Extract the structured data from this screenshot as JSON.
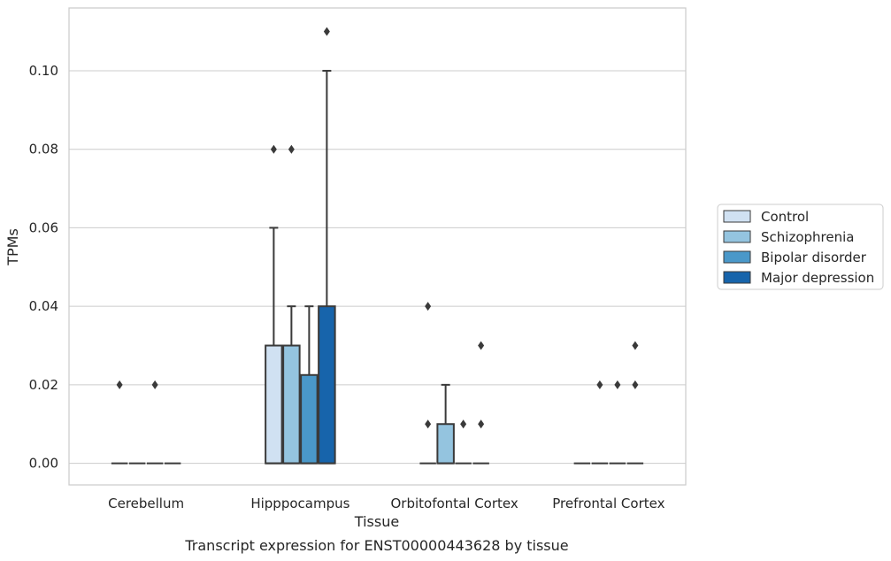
{
  "chart_data": {
    "type": "box",
    "title": "Transcript expression for ENST00000443628 by tissue",
    "xlabel": "Tissue",
    "ylabel": "TPMs",
    "categories": [
      "Cerebellum",
      "Hipppocampus",
      "Orbitofontal Cortex",
      "Prefrontal Cortex"
    ],
    "ylim": [
      -0.0055,
      0.116
    ],
    "yticks": [
      {
        "v": 0.0,
        "label": "0.00"
      },
      {
        "v": 0.02,
        "label": "0.02"
      },
      {
        "v": 0.04,
        "label": "0.04"
      },
      {
        "v": 0.06,
        "label": "0.06"
      },
      {
        "v": 0.08,
        "label": "0.08"
      },
      {
        "v": 0.1,
        "label": "0.10"
      }
    ],
    "grid": true,
    "legend_position": "right",
    "series": [
      {
        "name": "Control",
        "color": "#d0e1f2",
        "boxes": [
          {
            "q1": 0,
            "median": 0,
            "q3": 0,
            "whisker_low": 0,
            "whisker_high": 0,
            "outliers": [
              0.02
            ]
          },
          {
            "q1": 0,
            "median": 0,
            "q3": 0.03,
            "whisker_low": 0,
            "whisker_high": 0.06,
            "outliers": [
              0.08
            ]
          },
          {
            "q1": 0,
            "median": 0,
            "q3": 0,
            "whisker_low": 0,
            "whisker_high": 0,
            "outliers": [
              0.01,
              0.04
            ]
          },
          {
            "q1": 0,
            "median": 0,
            "q3": 0,
            "whisker_low": 0,
            "whisker_high": 0,
            "outliers": []
          }
        ]
      },
      {
        "name": "Schizophrenia",
        "color": "#94c4df",
        "boxes": [
          {
            "q1": 0,
            "median": 0,
            "q3": 0,
            "whisker_low": 0,
            "whisker_high": 0,
            "outliers": []
          },
          {
            "q1": 0,
            "median": 0,
            "q3": 0.03,
            "whisker_low": 0,
            "whisker_high": 0.04,
            "outliers": [
              0.08
            ]
          },
          {
            "q1": 0,
            "median": 0,
            "q3": 0.01,
            "whisker_low": 0,
            "whisker_high": 0.02,
            "outliers": []
          },
          {
            "q1": 0,
            "median": 0,
            "q3": 0,
            "whisker_low": 0,
            "whisker_high": 0,
            "outliers": [
              0.02
            ]
          }
        ]
      },
      {
        "name": "Bipolar disorder",
        "color": "#4a98c9",
        "boxes": [
          {
            "q1": 0,
            "median": 0,
            "q3": 0,
            "whisker_low": 0,
            "whisker_high": 0,
            "outliers": [
              0.02
            ]
          },
          {
            "q1": 0,
            "median": 0,
            "q3": 0.0225,
            "whisker_low": 0,
            "whisker_high": 0.04,
            "outliers": []
          },
          {
            "q1": 0,
            "median": 0,
            "q3": 0,
            "whisker_low": 0,
            "whisker_high": 0,
            "outliers": [
              0.01
            ]
          },
          {
            "q1": 0,
            "median": 0,
            "q3": 0,
            "whisker_low": 0,
            "whisker_high": 0,
            "outliers": [
              0.02
            ]
          }
        ]
      },
      {
        "name": "Major depression",
        "color": "#1764ab",
        "boxes": [
          {
            "q1": 0,
            "median": 0,
            "q3": 0,
            "whisker_low": 0,
            "whisker_high": 0,
            "outliers": []
          },
          {
            "q1": 0,
            "median": 0,
            "q3": 0.04,
            "whisker_low": 0,
            "whisker_high": 0.1,
            "outliers": [
              0.11
            ]
          },
          {
            "q1": 0,
            "median": 0,
            "q3": 0,
            "whisker_low": 0,
            "whisker_high": 0,
            "outliers": [
              0.01,
              0.03
            ]
          },
          {
            "q1": 0,
            "median": 0,
            "q3": 0,
            "whisker_low": 0,
            "whisker_high": 0,
            "outliers": [
              0.02,
              0.03
            ]
          }
        ]
      }
    ]
  }
}
